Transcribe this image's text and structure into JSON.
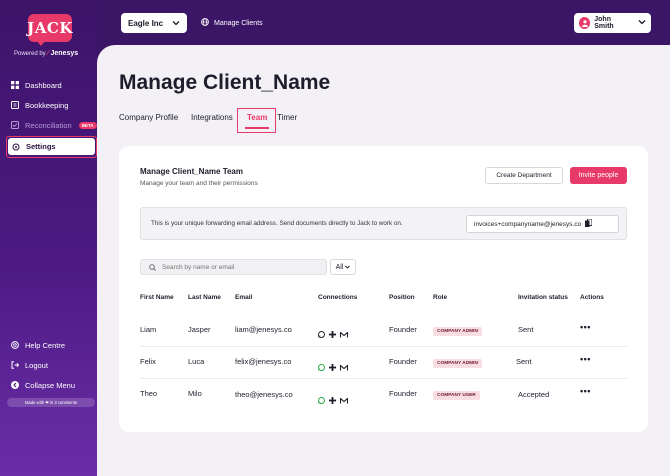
{
  "brand": {
    "logo_text": "JACK",
    "powered_prefix": "Powered by",
    "powered_brand": "Jenesys"
  },
  "sidebar": {
    "items": [
      {
        "label": "Dashboard",
        "icon": "grid-icon"
      },
      {
        "label": "Bookkeeping",
        "icon": "book-icon"
      },
      {
        "label": "Reconciliation",
        "icon": "reconcile-icon",
        "badge": "BETA"
      },
      {
        "label": "Settings",
        "icon": "gear-icon"
      }
    ],
    "bottom": [
      {
        "label": "Help Centre",
        "icon": "help-icon"
      },
      {
        "label": "Logout",
        "icon": "logout-icon"
      },
      {
        "label": "Collapse Menu",
        "icon": "collapse-icon"
      }
    ],
    "made_with": "Made with ❤ in 3 continents"
  },
  "topbar": {
    "company": "Eagle Inc",
    "manage_clients": "Manage Clients",
    "user": "John Smith"
  },
  "page": {
    "title": "Manage Client_Name",
    "tabs": [
      "Company Profile",
      "Integrations",
      "Team",
      "Timer"
    ],
    "active_tab": "Team"
  },
  "team": {
    "title": "Manage Client_Name Team",
    "subtitle": "Manage your  team and their permissions",
    "create_department": "Create Department",
    "invite_people": "Invite people",
    "forwarding_note": "This is your unique forwarding email address. Send documents directly to Jack to work on.",
    "forwarding_email": "invoices+companyname@jenesys.co",
    "search_placeholder": "Search by name or email",
    "filter": "All",
    "columns": [
      "First Name",
      "Last Name",
      "Email",
      "Connections",
      "Position",
      "Role",
      "Invitation status",
      "Actions"
    ],
    "rows": [
      {
        "first": "Liam",
        "last": "Jasper",
        "email": "liam@jenesys.co",
        "position": "Founder",
        "role": "COMPANY ADMIN",
        "status": "Sent"
      },
      {
        "first": "Felix",
        "last": "Luca",
        "email": "felix@jenesys.co",
        "position": "Founder",
        "role": "COMPANY ADMIN",
        "status": "Sent"
      },
      {
        "first": "Theo",
        "last": "Milo",
        "email": "theo@jenesys.co",
        "position": "Founder",
        "role": "COMPANY USER",
        "status": "Accepted"
      }
    ]
  },
  "colors": {
    "accent": "#e83a68",
    "sidebar": "#3d1468",
    "badge_bg": "#f9dde4"
  }
}
